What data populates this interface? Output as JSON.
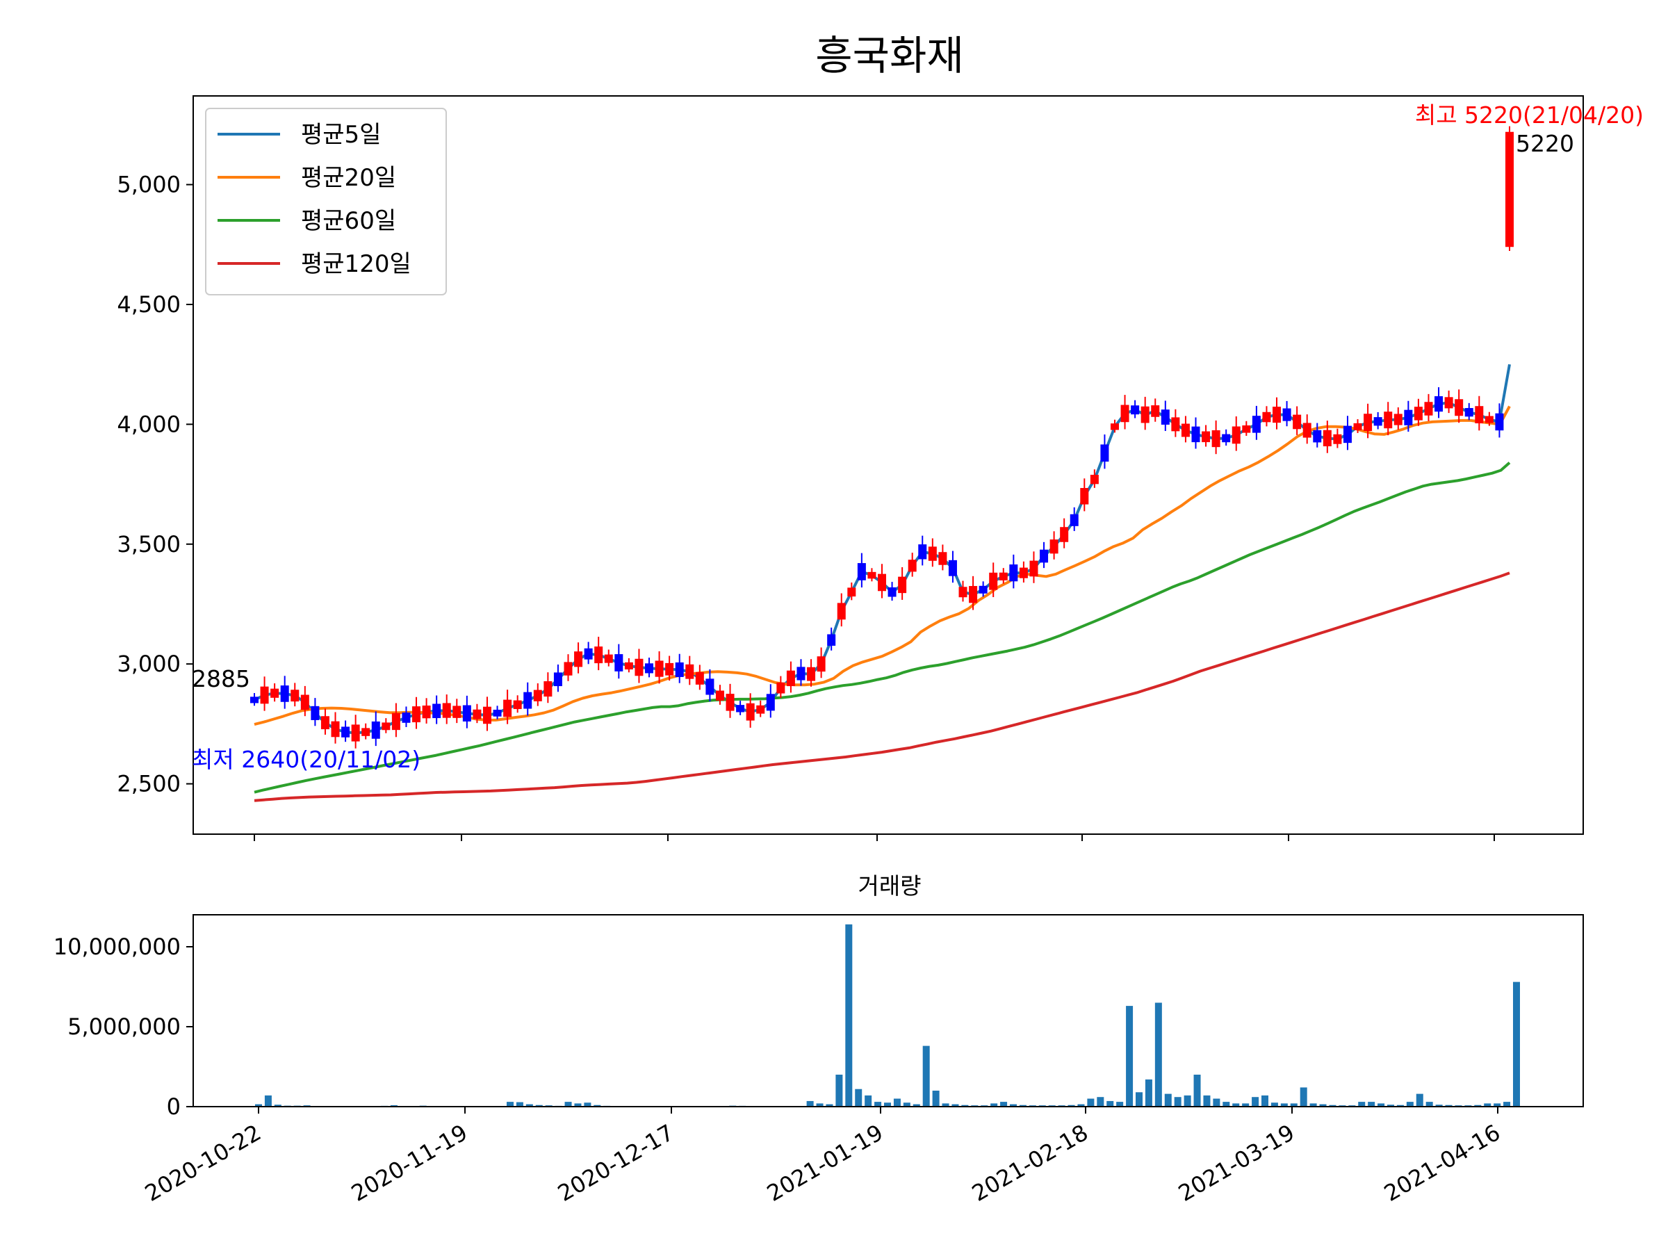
{
  "chart_data": [
    {
      "type": "candlestick",
      "title": "흥국화재",
      "xlabel": "",
      "ylabel": "",
      "ylim": [
        2290,
        5370
      ],
      "yticks": [
        2500,
        3000,
        3500,
        4000,
        4500,
        5000
      ],
      "ytick_labels": [
        "2,500",
        "3,000",
        "3,500",
        "4,000",
        "4,500",
        "5,000"
      ],
      "grid": false,
      "legend_position": "top-left",
      "up_color": "#ff0000",
      "down_color": "#0000ff",
      "series": [
        {
          "name": "평균5일",
          "color": "#1f77b4",
          "values": [
            2850,
            2870,
            2878,
            2876,
            2868,
            2840,
            2795,
            2755,
            2728,
            2716,
            2712,
            2716,
            2724,
            2740,
            2760,
            2776,
            2790,
            2800,
            2804,
            2806,
            2800,
            2794,
            2790,
            2786,
            2795,
            2815,
            2830,
            2848,
            2868,
            2896,
            2936,
            2980,
            3020,
            3042,
            3038,
            3022,
            3005,
            2992,
            2986,
            2982,
            2980,
            2978,
            2976,
            2968,
            2940,
            2905,
            2868,
            2840,
            2814,
            2800,
            2810,
            2840,
            2900,
            2940,
            2960,
            2958,
            3000,
            3100,
            3220,
            3300,
            3385,
            3370,
            3340,
            3300,
            3330,
            3410,
            3468,
            3460,
            3440,
            3400,
            3300,
            3290,
            3310,
            3345,
            3365,
            3380,
            3380,
            3398,
            3450,
            3490,
            3540,
            3600,
            3700,
            3770,
            3880,
            3990,
            4045,
            4060,
            4040,
            4055,
            4030,
            4000,
            3975,
            3958,
            3948,
            3940,
            3942,
            3955,
            3980,
            4000,
            4030,
            4040,
            4040,
            4010,
            3975,
            3950,
            3942,
            3938,
            3958,
            3990,
            4008,
            4012,
            4018,
            4020,
            4028,
            4045,
            4065,
            4085,
            4090,
            4070,
            4050,
            4040,
            4020,
            4010,
            4250
          ]
        },
        {
          "name": "평균20일",
          "color": "#ff7f0e",
          "values": [
            2748,
            2758,
            2770,
            2782,
            2795,
            2806,
            2812,
            2815,
            2816,
            2815,
            2812,
            2808,
            2804,
            2800,
            2797,
            2797,
            2798,
            2798,
            2796,
            2795,
            2791,
            2785,
            2778,
            2770,
            2766,
            2766,
            2771,
            2777,
            2782,
            2788,
            2796,
            2808,
            2825,
            2843,
            2857,
            2867,
            2874,
            2880,
            2888,
            2897,
            2906,
            2916,
            2928,
            2942,
            2952,
            2958,
            2962,
            2966,
            2968,
            2966,
            2963,
            2958,
            2948,
            2935,
            2922,
            2916,
            2913,
            2913,
            2916,
            2924,
            2940,
            2970,
            2993,
            3008,
            3020,
            3032,
            3050,
            3070,
            3093,
            3133,
            3158,
            3180,
            3196,
            3210,
            3232,
            3265,
            3290,
            3320,
            3340,
            3365,
            3375,
            3370,
            3365,
            3375,
            3393,
            3410,
            3428,
            3447,
            3470,
            3490,
            3505,
            3525,
            3560,
            3585,
            3608,
            3635,
            3660,
            3690,
            3716,
            3742,
            3765,
            3785,
            3805,
            3822,
            3842,
            3865,
            3890,
            3918,
            3948,
            3970,
            3983,
            3990,
            3990,
            3988,
            3982,
            3970,
            3960,
            3958,
            3968,
            3980,
            3995,
            4005,
            4010,
            4012,
            4014,
            4016,
            4016,
            4010,
            4005,
            4000,
            4075
          ]
        },
        {
          "name": "평균60일",
          "color": "#2ca02c",
          "values": [
            2465,
            2474,
            2482,
            2490,
            2498,
            2506,
            2514,
            2521,
            2528,
            2535,
            2542,
            2549,
            2556,
            2563,
            2570,
            2577,
            2584,
            2591,
            2598,
            2605,
            2612,
            2619,
            2627,
            2635,
            2643,
            2651,
            2659,
            2668,
            2677,
            2686,
            2695,
            2704,
            2713,
            2722,
            2731,
            2740,
            2749,
            2758,
            2765,
            2772,
            2779,
            2786,
            2793,
            2800,
            2806,
            2812,
            2818,
            2822,
            2822,
            2826,
            2834,
            2840,
            2845,
            2849,
            2851,
            2852,
            2853,
            2853,
            2854,
            2855,
            2858,
            2860,
            2864,
            2870,
            2878,
            2888,
            2897,
            2904,
            2910,
            2914,
            2920,
            2927,
            2935,
            2942,
            2952,
            2965,
            2975,
            2983,
            2990,
            2995,
            3002,
            3010,
            3018,
            3026,
            3033,
            3040,
            3047,
            3054,
            3062,
            3070,
            3080,
            3092,
            3104,
            3117,
            3132,
            3147,
            3162,
            3177,
            3192,
            3208,
            3224,
            3240,
            3256,
            3272,
            3288,
            3304,
            3320,
            3334,
            3346,
            3360,
            3376,
            3392,
            3408,
            3424,
            3440,
            3456,
            3470,
            3484,
            3498,
            3512,
            3526,
            3540,
            3555,
            3570,
            3586,
            3603,
            3620,
            3636,
            3650,
            3663,
            3676,
            3690,
            3704,
            3718,
            3730,
            3742,
            3750,
            3755,
            3760,
            3765,
            3772,
            3780,
            3788,
            3796,
            3808,
            3840
          ]
        },
        {
          "name": "평균120일",
          "color": "#d62728",
          "values": [
            2430,
            2433,
            2436,
            2439,
            2441,
            2443,
            2445,
            2446,
            2447,
            2448,
            2449,
            2450,
            2451,
            2452,
            2453,
            2454,
            2456,
            2458,
            2460,
            2462,
            2464,
            2465,
            2466,
            2467,
            2468,
            2469,
            2470,
            2472,
            2474,
            2476,
            2478,
            2480,
            2482,
            2484,
            2487,
            2490,
            2493,
            2495,
            2497,
            2499,
            2501,
            2503,
            2506,
            2510,
            2515,
            2520,
            2525,
            2530,
            2535,
            2540,
            2545,
            2550,
            2555,
            2560,
            2565,
            2570,
            2575,
            2580,
            2584,
            2588,
            2592,
            2596,
            2600,
            2604,
            2608,
            2612,
            2617,
            2622,
            2627,
            2632,
            2638,
            2644,
            2650,
            2658,
            2666,
            2674,
            2681,
            2688,
            2696,
            2704,
            2712,
            2720,
            2730,
            2740,
            2750,
            2760,
            2770,
            2780,
            2790,
            2800,
            2810,
            2820,
            2830,
            2840,
            2850,
            2860,
            2870,
            2880,
            2892,
            2904,
            2916,
            2928,
            2942,
            2956,
            2970,
            2982,
            2994,
            3006,
            3018,
            3030,
            3042,
            3054,
            3066,
            3078,
            3090,
            3102,
            3114,
            3126,
            3138,
            3150,
            3162,
            3174,
            3186,
            3198,
            3210,
            3222,
            3234,
            3246,
            3258,
            3270,
            3282,
            3294,
            3306,
            3318,
            3330,
            3342,
            3354,
            3366,
            3380
          ]
        }
      ],
      "annotations": [
        {
          "text": "최고 5220(21/04/20)",
          "color": "#ff0000"
        },
        {
          "text": "5220",
          "color": "#000000"
        },
        {
          "text": "2885",
          "color": "#000000"
        },
        {
          "text": "최저 2640(20/11/02)",
          "color": "#0000ff"
        }
      ]
    },
    {
      "type": "bar",
      "title": "거래량",
      "xlabel": "",
      "ylabel": "",
      "ylim": [
        0,
        12000000
      ],
      "yticks": [
        0,
        5000000,
        10000000
      ],
      "ytick_labels": [
        "0",
        "5,000,000",
        "10,000,000"
      ],
      "x_tick_labels": [
        "2020-10-22",
        "2020-11-19",
        "2020-12-17",
        "2021-01-19",
        "2021-02-18",
        "2021-03-19",
        "2021-04-16"
      ],
      "color": "#1f77b4",
      "values": [
        150000,
        700000,
        120000,
        60000,
        60000,
        80000,
        40000,
        20000,
        20000,
        20000,
        20000,
        20000,
        30000,
        50000,
        90000,
        30000,
        20000,
        60000,
        30000,
        20000,
        20000,
        20000,
        20000,
        20000,
        20000,
        30000,
        300000,
        280000,
        150000,
        100000,
        80000,
        50000,
        300000,
        200000,
        250000,
        100000,
        50000,
        40000,
        40000,
        30000,
        30000,
        20000,
        20000,
        20000,
        20000,
        20000,
        20000,
        20000,
        20000,
        60000,
        50000,
        40000,
        40000,
        40000,
        20000,
        20000,
        30000,
        350000,
        200000,
        150000,
        2000000,
        11400000,
        1100000,
        700000,
        300000,
        250000,
        500000,
        250000,
        150000,
        3800000,
        1000000,
        200000,
        150000,
        100000,
        80000,
        80000,
        200000,
        300000,
        150000,
        100000,
        80000,
        80000,
        80000,
        80000,
        100000,
        150000,
        500000,
        600000,
        350000,
        300000,
        6300000,
        900000,
        1700000,
        6500000,
        800000,
        600000,
        700000,
        2000000,
        700000,
        500000,
        300000,
        200000,
        200000,
        600000,
        700000,
        250000,
        200000,
        200000,
        1200000,
        200000,
        150000,
        100000,
        80000,
        80000,
        300000,
        300000,
        200000,
        120000,
        100000,
        300000,
        800000,
        300000,
        120000,
        100000,
        80000,
        80000,
        100000,
        200000,
        200000,
        300000,
        7800000
      ]
    }
  ]
}
